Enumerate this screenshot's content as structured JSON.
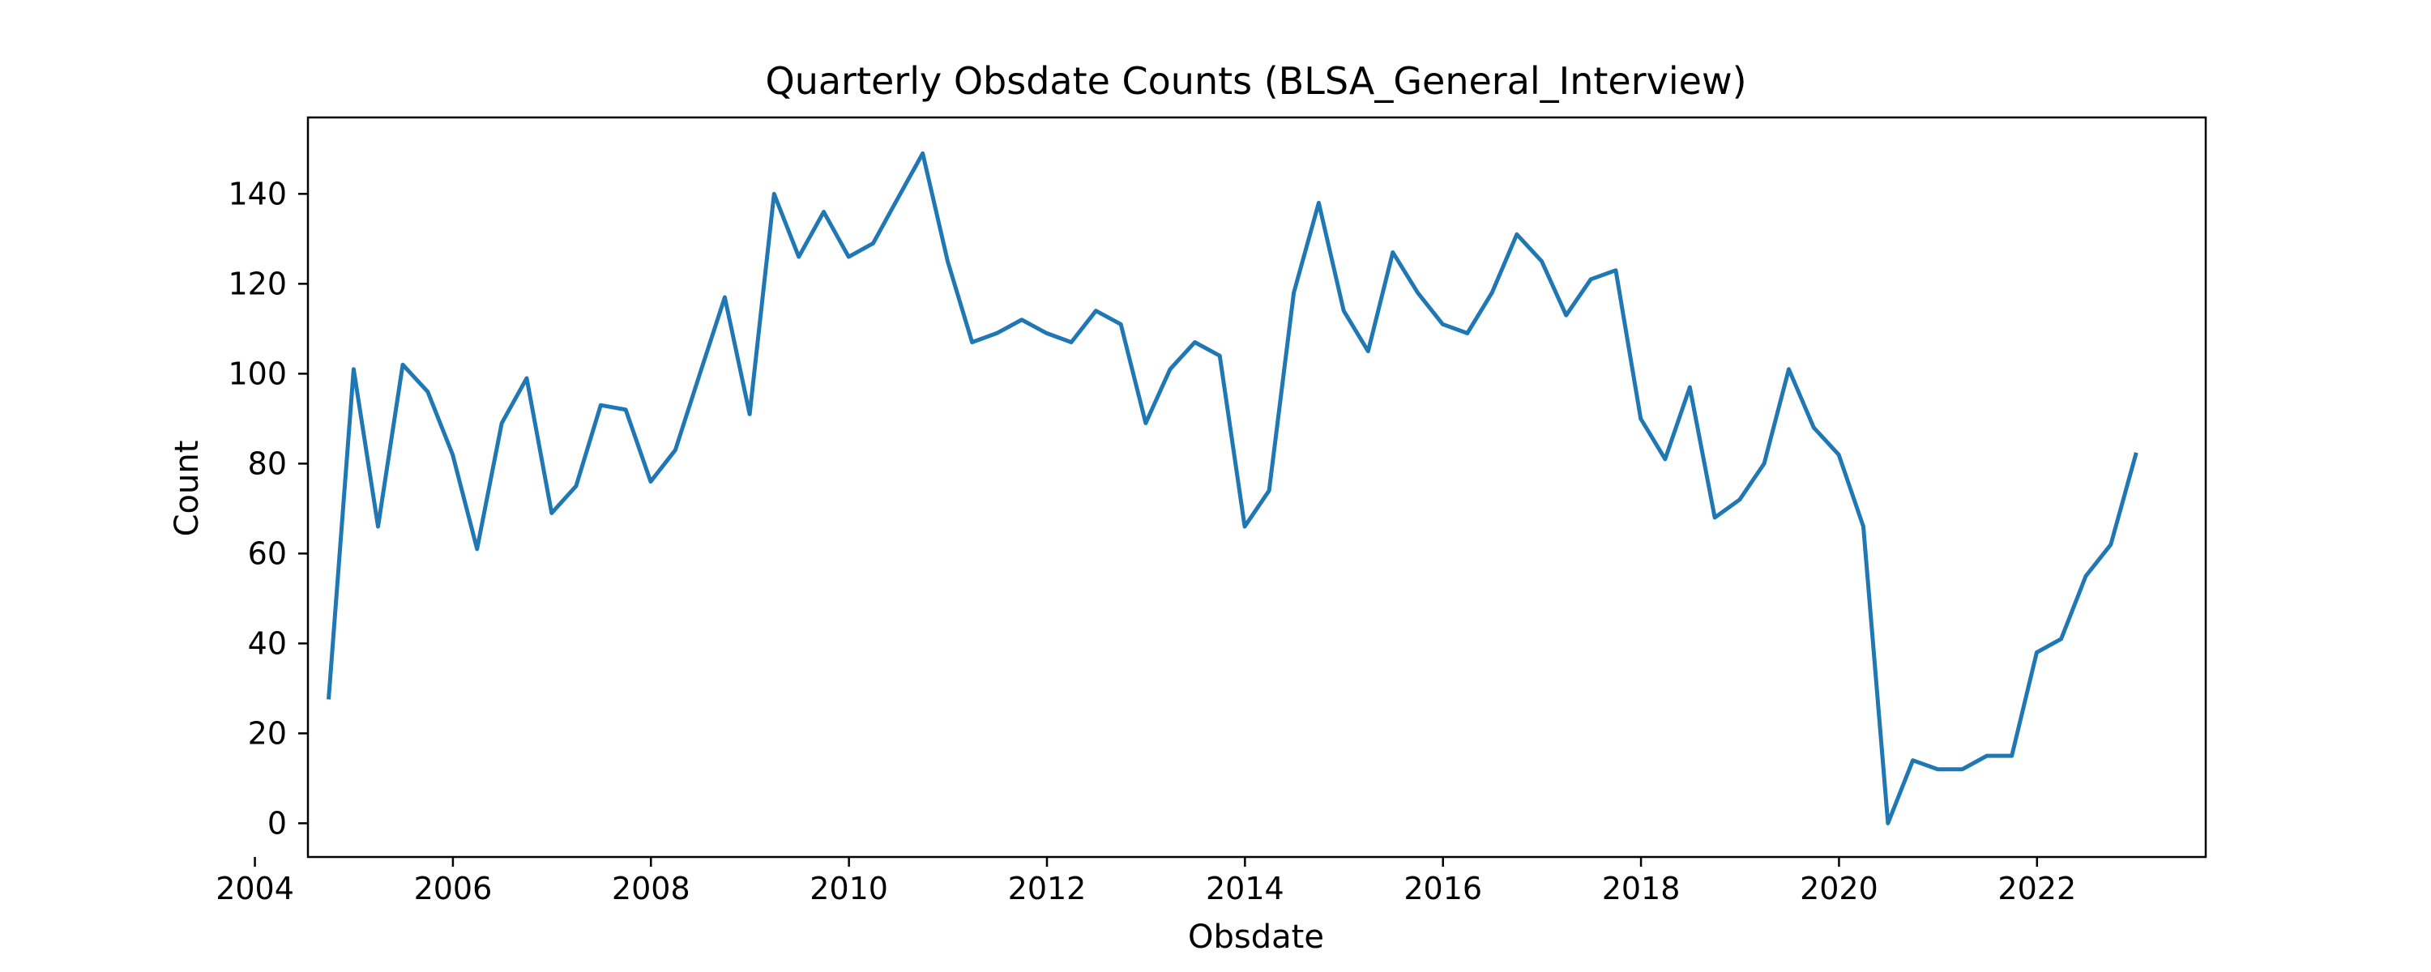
{
  "chart_data": {
    "type": "line",
    "title": "Quarterly Obsdate Counts (BLSA_General_Interview)",
    "xlabel": "Obsdate",
    "ylabel": "Count",
    "x_ticks": [
      "2004",
      "2006",
      "2008",
      "2010",
      "2012",
      "2014",
      "2016",
      "2018",
      "2020",
      "2022"
    ],
    "y_ticks": [
      "0",
      "20",
      "40",
      "60",
      "80",
      "100",
      "120",
      "140"
    ],
    "xlim": [
      "2004-07-15",
      "2023-09-15"
    ],
    "ylim": [
      -7.5,
      157
    ],
    "grid": false,
    "legend": "none",
    "series": [
      {
        "color": "#1f77b4",
        "x": [
          "2004-09-30",
          "2004-12-31",
          "2005-03-31",
          "2005-06-30",
          "2005-09-30",
          "2005-12-31",
          "2006-03-31",
          "2006-06-30",
          "2006-09-30",
          "2006-12-31",
          "2007-03-31",
          "2007-06-30",
          "2007-09-30",
          "2007-12-31",
          "2008-03-31",
          "2008-06-30",
          "2008-09-30",
          "2008-12-31",
          "2009-03-31",
          "2009-06-30",
          "2009-09-30",
          "2009-12-31",
          "2010-03-31",
          "2010-06-30",
          "2010-09-30",
          "2010-12-31",
          "2011-03-31",
          "2011-06-30",
          "2011-09-30",
          "2011-12-31",
          "2012-03-31",
          "2012-06-30",
          "2012-09-30",
          "2012-12-31",
          "2013-03-31",
          "2013-06-30",
          "2013-09-30",
          "2013-12-31",
          "2014-03-31",
          "2014-06-30",
          "2014-09-30",
          "2014-12-31",
          "2015-03-31",
          "2015-06-30",
          "2015-09-30",
          "2015-12-31",
          "2016-03-31",
          "2016-06-30",
          "2016-09-30",
          "2016-12-31",
          "2017-03-31",
          "2017-06-30",
          "2017-09-30",
          "2017-12-31",
          "2018-03-31",
          "2018-06-30",
          "2018-09-30",
          "2018-12-31",
          "2019-03-31",
          "2019-06-30",
          "2019-09-30",
          "2019-12-31",
          "2020-03-31",
          "2020-06-30",
          "2020-09-30",
          "2020-12-31",
          "2021-03-31",
          "2021-06-30",
          "2021-09-30",
          "2021-12-31",
          "2022-03-31",
          "2022-06-30",
          "2022-09-30",
          "2022-12-31"
        ],
        "y": [
          28,
          101,
          66,
          102,
          96,
          82,
          61,
          89,
          99,
          69,
          75,
          93,
          92,
          76,
          83,
          100,
          117,
          91,
          140,
          126,
          136,
          126,
          129,
          139,
          149,
          125,
          107,
          109,
          112,
          109,
          107,
          114,
          111,
          89,
          101,
          107,
          104,
          66,
          74,
          118,
          138,
          114,
          105,
          127,
          118,
          111,
          109,
          118,
          131,
          125,
          113,
          121,
          123,
          90,
          81,
          97,
          68,
          72,
          80,
          101,
          88,
          82,
          66,
          0,
          14,
          12,
          12,
          15,
          15,
          38,
          41,
          55,
          62,
          82
        ]
      }
    ]
  }
}
